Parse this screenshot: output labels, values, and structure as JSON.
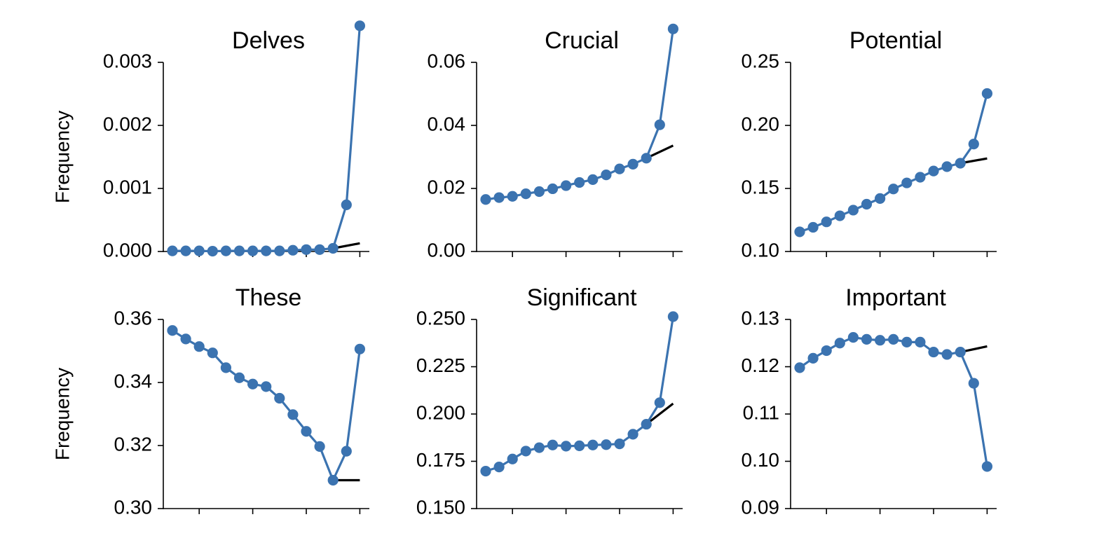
{
  "chart_data": [
    {
      "type": "line",
      "title": "Delves",
      "ylabel": "Frequency",
      "ylim": [
        0,
        0.003
      ],
      "yticks": [
        "0.000",
        "0.001",
        "0.002",
        "0.003"
      ],
      "series": [
        {
          "values": [
            1e-05,
            1e-05,
            1e-05,
            5e-06,
            1e-05,
            1e-05,
            1e-05,
            1e-05,
            1e-05,
            2e-05,
            3e-05,
            3e-05,
            5e-05,
            0.00074,
            0.00358
          ]
        }
      ],
      "trend": [
        5e-05,
        0.00013
      ],
      "colors": {
        "series": "#3b73b0",
        "trend": "#000000"
      }
    },
    {
      "type": "line",
      "title": "Crucial",
      "ylabel": "",
      "ylim": [
        0,
        0.06
      ],
      "yticks": [
        "0.00",
        "0.02",
        "0.04",
        "0.06"
      ],
      "series": [
        {
          "values": [
            0.0165,
            0.0171,
            0.0175,
            0.0183,
            0.019,
            0.0199,
            0.0209,
            0.0219,
            0.0228,
            0.0243,
            0.0262,
            0.0277,
            0.0296,
            0.0402,
            0.0706
          ]
        }
      ],
      "trend": [
        0.0296,
        0.0336
      ],
      "colors": {
        "series": "#3b73b0",
        "trend": "#000000"
      }
    },
    {
      "type": "line",
      "title": "Potential",
      "ylabel": "",
      "ylim": [
        0.1,
        0.25
      ],
      "yticks": [
        "0.10",
        "0.15",
        "0.20",
        "0.25"
      ],
      "series": [
        {
          "values": [
            0.1156,
            0.1192,
            0.1235,
            0.1283,
            0.1328,
            0.1375,
            0.142,
            0.1496,
            0.1544,
            0.1589,
            0.1638,
            0.1673,
            0.17,
            0.1852,
            0.2253
          ]
        }
      ],
      "trend": [
        0.17,
        0.1738
      ],
      "colors": {
        "series": "#3b73b0",
        "trend": "#000000"
      }
    },
    {
      "type": "line",
      "title": "These",
      "ylabel": "Frequency",
      "ylim": [
        0.3,
        0.36
      ],
      "yticks": [
        "0.30",
        "0.32",
        "0.34",
        "0.36"
      ],
      "series": [
        {
          "values": [
            0.3565,
            0.3538,
            0.3514,
            0.3494,
            0.3447,
            0.3415,
            0.3395,
            0.3387,
            0.335,
            0.3298,
            0.3245,
            0.3197,
            0.309,
            0.3182,
            0.3506
          ]
        }
      ],
      "trend": [
        0.309,
        0.309
      ],
      "colors": {
        "series": "#3b73b0",
        "trend": "#000000"
      }
    },
    {
      "type": "line",
      "title": "Significant",
      "ylabel": "",
      "ylim": [
        0.15,
        0.25
      ],
      "yticks": [
        "0.150",
        "0.175",
        "0.200",
        "0.225",
        "0.250"
      ],
      "series": [
        {
          "values": [
            0.1698,
            0.172,
            0.1762,
            0.1804,
            0.1822,
            0.1836,
            0.183,
            0.1832,
            0.1836,
            0.1838,
            0.1842,
            0.1893,
            0.1946,
            0.206,
            0.2515
          ]
        }
      ],
      "trend": [
        0.1946,
        0.2055
      ],
      "colors": {
        "series": "#3b73b0",
        "trend": "#000000"
      }
    },
    {
      "type": "line",
      "title": "Important",
      "ylabel": "",
      "ylim": [
        0.09,
        0.13
      ],
      "yticks": [
        "0.09",
        "0.10",
        "0.11",
        "0.12",
        "0.13"
      ],
      "series": [
        {
          "values": [
            0.1198,
            0.1218,
            0.1234,
            0.125,
            0.1262,
            0.1258,
            0.1256,
            0.1258,
            0.1252,
            0.1252,
            0.1231,
            0.1226,
            0.1231,
            0.1165,
            0.0989
          ]
        }
      ],
      "trend": [
        0.1231,
        0.1243
      ],
      "colors": {
        "series": "#3b73b0",
        "trend": "#000000"
      }
    }
  ]
}
